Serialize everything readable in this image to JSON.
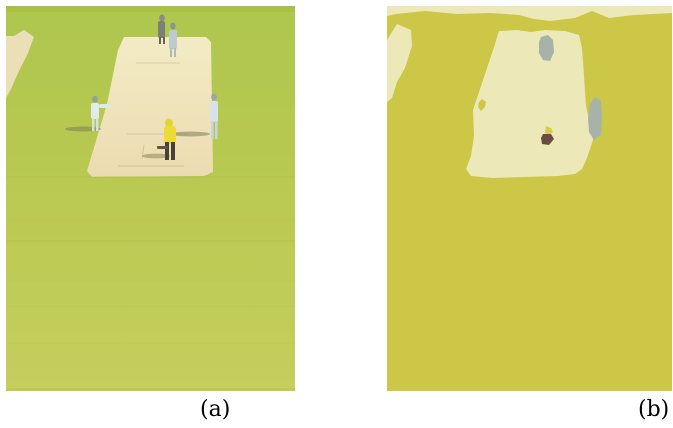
{
  "captions": {
    "a": "(a)",
    "b": "(b)"
  },
  "colors": {
    "photo_grass_top": "#9fbb2f",
    "photo_grass_bottom": "#b7c53d",
    "photo_pitch": "#efe3b0",
    "photo_player_white": "#d8e6ea",
    "photo_player_yellow": "#e2d41a",
    "photo_shadow": "#4b4a2f",
    "seg_grass": "#ccc746",
    "seg_pitch": "#ece8b8",
    "seg_gray": "#a7b3a8",
    "seg_dark": "#6d4b45"
  }
}
